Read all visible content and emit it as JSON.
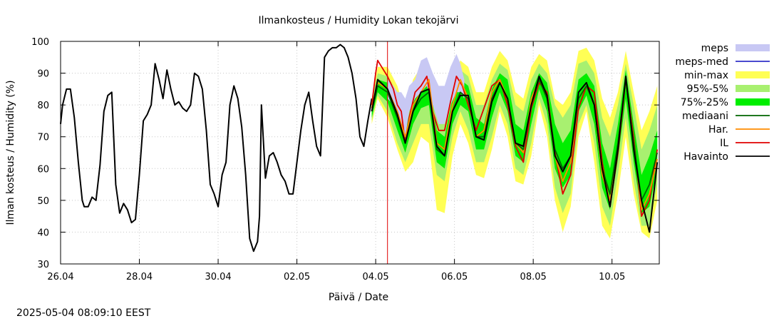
{
  "chart_data": {
    "type": "line",
    "title": "Ilmankosteus / Humidity  Lokan tekojärvi",
    "xlabel": "Päivä / Date",
    "ylabel": "Ilman kosteus / Humidity (%)",
    "timestamp": "2025-05-04 08:09:10 EEST",
    "ylim": [
      30,
      100
    ],
    "xlim": [
      0,
      15.2
    ],
    "y_ticks": [
      30,
      40,
      50,
      60,
      70,
      80,
      90,
      100
    ],
    "x_ticks": [
      {
        "x": 0,
        "label": "26.04"
      },
      {
        "x": 2,
        "label": "28.04"
      },
      {
        "x": 4,
        "label": "30.04"
      },
      {
        "x": 6,
        "label": "02.05"
      },
      {
        "x": 8,
        "label": "04.05"
      },
      {
        "x": 10,
        "label": "06.05"
      },
      {
        "x": 12,
        "label": "08.05"
      },
      {
        "x": 14,
        "label": "10.05"
      }
    ],
    "grid": true,
    "legend_position": "right",
    "now_x": 8.3,
    "colors": {
      "meps": "#c8c8f4",
      "meps_med": "#3030c8",
      "minmax": "#ffff55",
      "p95_5": "#a8f070",
      "p75_25": "#00ee00",
      "mediaani": "#006400",
      "har": "#ff8c00",
      "il": "#e00000",
      "havainto": "#000000",
      "now_line": "#e00000"
    },
    "legend": [
      {
        "key": "meps",
        "label": "meps",
        "kind": "box"
      },
      {
        "key": "meps_med",
        "label": "meps-med",
        "kind": "line"
      },
      {
        "key": "minmax",
        "label": "min-max",
        "kind": "box"
      },
      {
        "key": "p95_5",
        "label": "95%-5%",
        "kind": "box"
      },
      {
        "key": "p75_25",
        "label": "75%-25%",
        "kind": "box"
      },
      {
        "key": "mediaani",
        "label": "mediaani",
        "kind": "line"
      },
      {
        "key": "har",
        "label": "Har.",
        "kind": "line"
      },
      {
        "key": "il",
        "label": "IL",
        "kind": "line"
      },
      {
        "key": "havainto",
        "label": "Havainto",
        "kind": "line"
      }
    ],
    "series": [
      {
        "key": "havainto",
        "x": [
          0,
          0.05,
          0.15,
          0.25,
          0.35,
          0.45,
          0.55,
          0.6,
          0.7,
          0.8,
          0.9,
          1.0,
          1.1,
          1.2,
          1.3,
          1.4,
          1.5,
          1.6,
          1.7,
          1.8,
          1.9,
          2.0,
          2.1,
          2.2,
          2.3,
          2.4,
          2.5,
          2.6,
          2.7,
          2.8,
          2.9,
          3.0,
          3.1,
          3.2,
          3.3,
          3.4,
          3.5,
          3.6,
          3.7,
          3.8,
          3.9,
          4.0,
          4.1,
          4.2,
          4.3,
          4.4,
          4.5,
          4.6,
          4.7,
          4.8,
          4.9,
          5.0,
          5.05,
          5.1,
          5.2,
          5.3,
          5.4,
          5.5,
          5.6,
          5.7,
          5.8,
          5.9,
          6.0,
          6.1,
          6.2,
          6.3,
          6.4,
          6.5,
          6.6,
          6.7,
          6.8,
          6.9,
          7.0,
          7.1,
          7.2,
          7.3,
          7.4,
          7.5,
          7.6,
          7.7,
          7.8,
          7.9
        ],
        "values": [
          74,
          80,
          85,
          85,
          76,
          62,
          50,
          48,
          48,
          51,
          50,
          61,
          78,
          83,
          84,
          55,
          46,
          49,
          47,
          43,
          44,
          58,
          75,
          77,
          80,
          93,
          88,
          82,
          91,
          85,
          80,
          81,
          79,
          78,
          80,
          90,
          89,
          85,
          72,
          55,
          52,
          48,
          58,
          62,
          80,
          86,
          82,
          73,
          58,
          38,
          34,
          37,
          45,
          80,
          57,
          64,
          65,
          62,
          58,
          56,
          52,
          52,
          62,
          72,
          80,
          84,
          75,
          67,
          64,
          95,
          97,
          98,
          98,
          99,
          98,
          95,
          90,
          82,
          70,
          67,
          75,
          82
        ]
      },
      {
        "key": "il",
        "x": [
          7.9,
          8.0,
          8.05,
          8.15,
          8.3,
          8.45,
          8.55,
          8.65,
          8.75,
          8.85,
          9.0,
          9.15,
          9.3,
          9.45,
          9.6,
          9.75,
          9.9,
          10.05,
          10.2,
          10.35,
          10.55,
          10.75,
          10.95,
          11.15,
          11.35,
          11.55,
          11.75,
          11.95,
          12.15,
          12.35,
          12.55,
          12.75,
          12.95,
          13.15,
          13.35,
          13.55,
          13.75,
          13.95,
          14.15,
          14.35,
          14.55,
          14.75,
          14.95,
          15.15
        ],
        "values": [
          80,
          90,
          94,
          92,
          89,
          85,
          80,
          78,
          68,
          76,
          84,
          86,
          89,
          78,
          72,
          72,
          81,
          89,
          86,
          80,
          72,
          79,
          86,
          88,
          80,
          67,
          62,
          79,
          87,
          84,
          65,
          52,
          58,
          79,
          86,
          84,
          62,
          48,
          65,
          88,
          70,
          45,
          50,
          66
        ]
      },
      {
        "key": "har",
        "x": [
          7.9,
          8.05,
          8.3,
          8.55,
          8.75,
          8.95,
          9.15,
          9.35,
          9.55,
          9.75,
          9.95,
          10.15,
          10.35,
          10.55,
          10.75,
          10.95,
          11.15,
          11.35,
          11.55,
          11.75,
          11.95,
          12.15,
          12.35,
          12.55,
          12.75,
          12.95,
          13.15,
          13.35,
          13.55,
          13.75,
          13.95,
          14.15,
          14.35,
          14.55,
          14.75,
          14.95,
          15.15
        ],
        "values": [
          79,
          87,
          85,
          78,
          70,
          80,
          84,
          88,
          68,
          66,
          80,
          88,
          82,
          70,
          72,
          84,
          88,
          82,
          68,
          65,
          82,
          88,
          82,
          64,
          56,
          62,
          82,
          86,
          80,
          58,
          50,
          68,
          88,
          68,
          47,
          52,
          63
        ]
      },
      {
        "key": "mediaani",
        "x": [
          7.9,
          8.05,
          8.3,
          8.55,
          8.75,
          8.95,
          9.15,
          9.35,
          9.55,
          9.75,
          9.95,
          10.15,
          10.35,
          10.55,
          10.75,
          10.95,
          11.15,
          11.35,
          11.55,
          11.75,
          11.95,
          12.15,
          12.35,
          12.55,
          12.75,
          12.95,
          13.15,
          13.35,
          13.55,
          13.75,
          13.95,
          14.15,
          14.35,
          14.55,
          14.75,
          14.95,
          15.15
        ],
        "values": [
          78,
          86,
          84,
          76,
          68,
          78,
          82,
          84,
          66,
          64,
          78,
          84,
          82,
          70,
          70,
          82,
          87,
          82,
          68,
          66,
          80,
          88,
          82,
          66,
          60,
          64,
          82,
          86,
          80,
          60,
          52,
          68,
          88,
          68,
          50,
          55,
          65
        ]
      },
      {
        "key": "havainto_forecast",
        "legend_key": "havainto",
        "x": [
          7.9,
          8.05,
          8.3,
          8.55,
          8.75,
          8.95,
          9.15,
          9.35,
          9.55,
          9.75,
          9.95,
          10.15,
          10.35,
          10.55,
          10.75,
          10.95,
          11.15,
          11.35,
          11.55,
          11.75,
          11.95,
          12.15,
          12.35,
          12.55,
          12.75,
          12.95,
          13.15,
          13.35,
          13.55,
          13.75,
          13.95,
          14.15,
          14.35,
          14.55,
          14.75,
          14.95,
          15.15
        ],
        "values": [
          78,
          88,
          85,
          77,
          68,
          78,
          84,
          85,
          67,
          64,
          78,
          83,
          83,
          70,
          69,
          81,
          87,
          82,
          68,
          67,
          80,
          89,
          83,
          64,
          59,
          64,
          84,
          87,
          80,
          60,
          48,
          66,
          89,
          66,
          50,
          40,
          62
        ]
      }
    ],
    "bands": [
      {
        "key": "minmax",
        "x": [
          7.9,
          8.05,
          8.3,
          8.55,
          8.75,
          8.95,
          9.15,
          9.35,
          9.55,
          9.75,
          9.95,
          10.15,
          10.35,
          10.55,
          10.75,
          10.95,
          11.15,
          11.35,
          11.55,
          11.75,
          11.95,
          12.15,
          12.35,
          12.55,
          12.75,
          12.95,
          13.15,
          13.35,
          13.55,
          13.75,
          13.95,
          14.15,
          14.35,
          14.55,
          14.75,
          14.95,
          15.15
        ],
        "low": [
          74,
          82,
          76,
          66,
          59,
          62,
          70,
          68,
          47,
          46,
          64,
          74,
          68,
          58,
          57,
          66,
          78,
          70,
          56,
          55,
          64,
          80,
          70,
          50,
          40,
          48,
          70,
          78,
          62,
          42,
          38,
          52,
          70,
          52,
          40,
          38,
          50
        ],
        "high": [
          82,
          92,
          92,
          86,
          78,
          88,
          92,
          93,
          85,
          80,
          88,
          94,
          92,
          84,
          84,
          92,
          97,
          94,
          84,
          82,
          92,
          96,
          94,
          82,
          80,
          84,
          97,
          98,
          94,
          82,
          76,
          84,
          97,
          84,
          72,
          78,
          86
        ]
      },
      {
        "key": "p95_5",
        "x": [
          7.9,
          8.05,
          8.3,
          8.55,
          8.75,
          8.95,
          9.15,
          9.35,
          9.55,
          9.75,
          9.95,
          10.15,
          10.35,
          10.55,
          10.75,
          10.95,
          11.15,
          11.35,
          11.55,
          11.75,
          11.95,
          12.15,
          12.35,
          12.55,
          12.75,
          12.95,
          13.15,
          13.35,
          13.55,
          13.75,
          13.95,
          14.15,
          14.35,
          14.55,
          14.75,
          14.95,
          15.15
        ],
        "low": [
          75,
          83,
          78,
          68,
          62,
          68,
          74,
          74,
          58,
          56,
          70,
          78,
          72,
          62,
          62,
          70,
          80,
          74,
          60,
          58,
          68,
          82,
          74,
          54,
          46,
          52,
          74,
          80,
          68,
          48,
          42,
          58,
          76,
          56,
          42,
          42,
          55
        ],
        "high": [
          81,
          90,
          89,
          84,
          76,
          85,
          89,
          90,
          80,
          76,
          85,
          91,
          89,
          80,
          80,
          88,
          93,
          91,
          80,
          78,
          88,
          93,
          90,
          80,
          76,
          80,
          93,
          94,
          90,
          76,
          70,
          80,
          93,
          80,
          66,
          72,
          80
        ]
      },
      {
        "key": "p75_25",
        "x": [
          7.9,
          8.05,
          8.3,
          8.55,
          8.75,
          8.95,
          9.15,
          9.35,
          9.55,
          9.75,
          9.95,
          10.15,
          10.35,
          10.55,
          10.75,
          10.95,
          11.15,
          11.35,
          11.55,
          11.75,
          11.95,
          12.15,
          12.35,
          12.55,
          12.75,
          12.95,
          13.15,
          13.35,
          13.55,
          13.75,
          13.95,
          14.15,
          14.35,
          14.55,
          14.75,
          14.95,
          15.15
        ],
        "low": [
          76,
          84,
          81,
          72,
          65,
          74,
          79,
          80,
          62,
          60,
          74,
          80,
          78,
          66,
          66,
          76,
          84,
          78,
          64,
          62,
          74,
          85,
          78,
          60,
          54,
          58,
          78,
          83,
          74,
          54,
          47,
          63,
          82,
          62,
          46,
          48,
          60
        ],
        "high": [
          80,
          88,
          87,
          80,
          72,
          82,
          86,
          88,
          72,
          70,
          82,
          88,
          86,
          76,
          74,
          85,
          90,
          88,
          74,
          72,
          84,
          90,
          87,
          74,
          68,
          72,
          88,
          90,
          86,
          68,
          60,
          74,
          91,
          74,
          58,
          64,
          72
        ]
      },
      {
        "key": "meps",
        "x": [
          8.3,
          8.45,
          8.55,
          8.65,
          8.75,
          8.85,
          9.0,
          9.15,
          9.3,
          9.45,
          9.6,
          9.75,
          9.9,
          10.05,
          10.15,
          10.25
        ],
        "low": [
          82,
          80,
          78,
          74,
          70,
          78,
          82,
          84,
          86,
          80,
          74,
          74,
          80,
          84,
          84,
          82
        ],
        "high": [
          88,
          86,
          84,
          84,
          82,
          86,
          88,
          94,
          95,
          90,
          86,
          86,
          92,
          96,
          93,
          88
        ]
      }
    ]
  }
}
